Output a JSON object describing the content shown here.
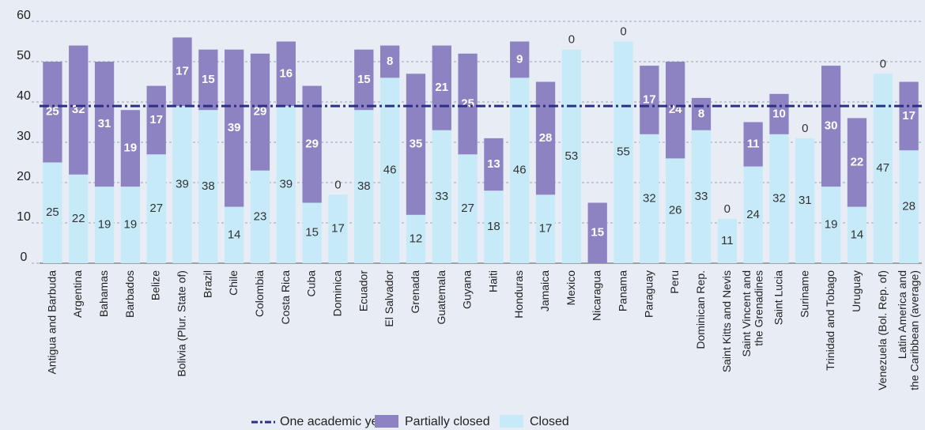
{
  "chart_data": {
    "type": "stacked-bar",
    "categories": [
      "Antigua and Barbuda",
      "Argentina",
      "Bahamas",
      "Barbados",
      "Belize",
      "Bolivia (Plur. State of)",
      "Brazil",
      "Chile",
      "Colombia",
      "Costa Rica",
      "Cuba",
      "Dominica",
      "Ecuador",
      "El Salvador",
      "Grenada",
      "Guatemala",
      "Guyana",
      "Haiti",
      "Honduras",
      "Jamaica",
      "Mexico",
      "Nicaragua",
      "Panama",
      "Paraguay",
      "Peru",
      "Dominican Rep.",
      "Saint Kitts and Nevis",
      "Saint Vincent and\nthe Grenadines",
      "Saint Lucia",
      "Suriname",
      "Trinidad and Tobago",
      "Uruguay",
      "Venezuela (Bol. Rep. of)",
      "Latin America and\nthe Caribbean (average)"
    ],
    "series": [
      {
        "name": "Closed",
        "color": "#c6eaf8",
        "values": [
          25,
          22,
          19,
          19,
          27,
          39,
          38,
          14,
          23,
          39,
          15,
          17,
          38,
          46,
          12,
          33,
          27,
          18,
          46,
          17,
          53,
          0,
          55,
          32,
          26,
          33,
          11,
          24,
          32,
          31,
          19,
          14,
          47,
          28
        ]
      },
      {
        "name": "Partially closed",
        "color": "#8d83c2",
        "values": [
          25,
          32,
          31,
          19,
          17,
          17,
          15,
          39,
          29,
          16,
          29,
          0,
          15,
          8,
          35,
          21,
          25,
          13,
          9,
          28,
          0,
          15,
          0,
          17,
          24,
          8,
          0,
          11,
          10,
          0,
          30,
          22,
          0,
          17
        ]
      }
    ],
    "reference_line": {
      "name": "One academic year",
      "value": 39,
      "color": "#2b2f86"
    },
    "ylim": [
      0,
      60
    ],
    "yticks": [
      0,
      10,
      20,
      30,
      40,
      50,
      60
    ],
    "grid": true
  }
}
